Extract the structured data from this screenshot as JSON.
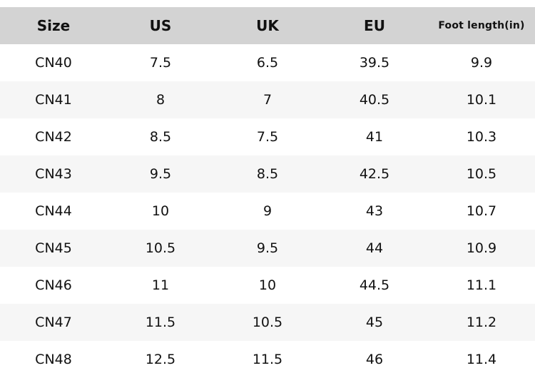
{
  "table": {
    "title": "size-conversion-chart",
    "columns": [
      {
        "key": "size",
        "label": "Size"
      },
      {
        "key": "us",
        "label": "US"
      },
      {
        "key": "uk",
        "label": "UK"
      },
      {
        "key": "eu",
        "label": "EU"
      },
      {
        "key": "foot_length",
        "label": "Foot length(in)"
      }
    ],
    "rows": [
      [
        "CN40",
        "7.5",
        "6.5",
        "39.5",
        "9.9"
      ],
      [
        "CN41",
        "8",
        "7",
        "40.5",
        "10.1"
      ],
      [
        "CN42",
        "8.5",
        "7.5",
        "41",
        "10.3"
      ],
      [
        "CN43",
        "9.5",
        "8.5",
        "42.5",
        "10.5"
      ],
      [
        "CN44",
        "10",
        "9",
        "43",
        "10.7"
      ],
      [
        "CN45",
        "10.5",
        "9.5",
        "44",
        "10.9"
      ],
      [
        "CN46",
        "11",
        "10",
        "44.5",
        "11.1"
      ],
      [
        "CN47",
        "11.5",
        "10.5",
        "45",
        "11.2"
      ],
      [
        "CN48",
        "12.5",
        "11.5",
        "46",
        "11.4"
      ]
    ],
    "colors": {
      "header_bg": "#d3d3d3",
      "row_bg": "#ffffff",
      "row_alt_bg": "#f6f6f6",
      "text": "#111111"
    }
  }
}
